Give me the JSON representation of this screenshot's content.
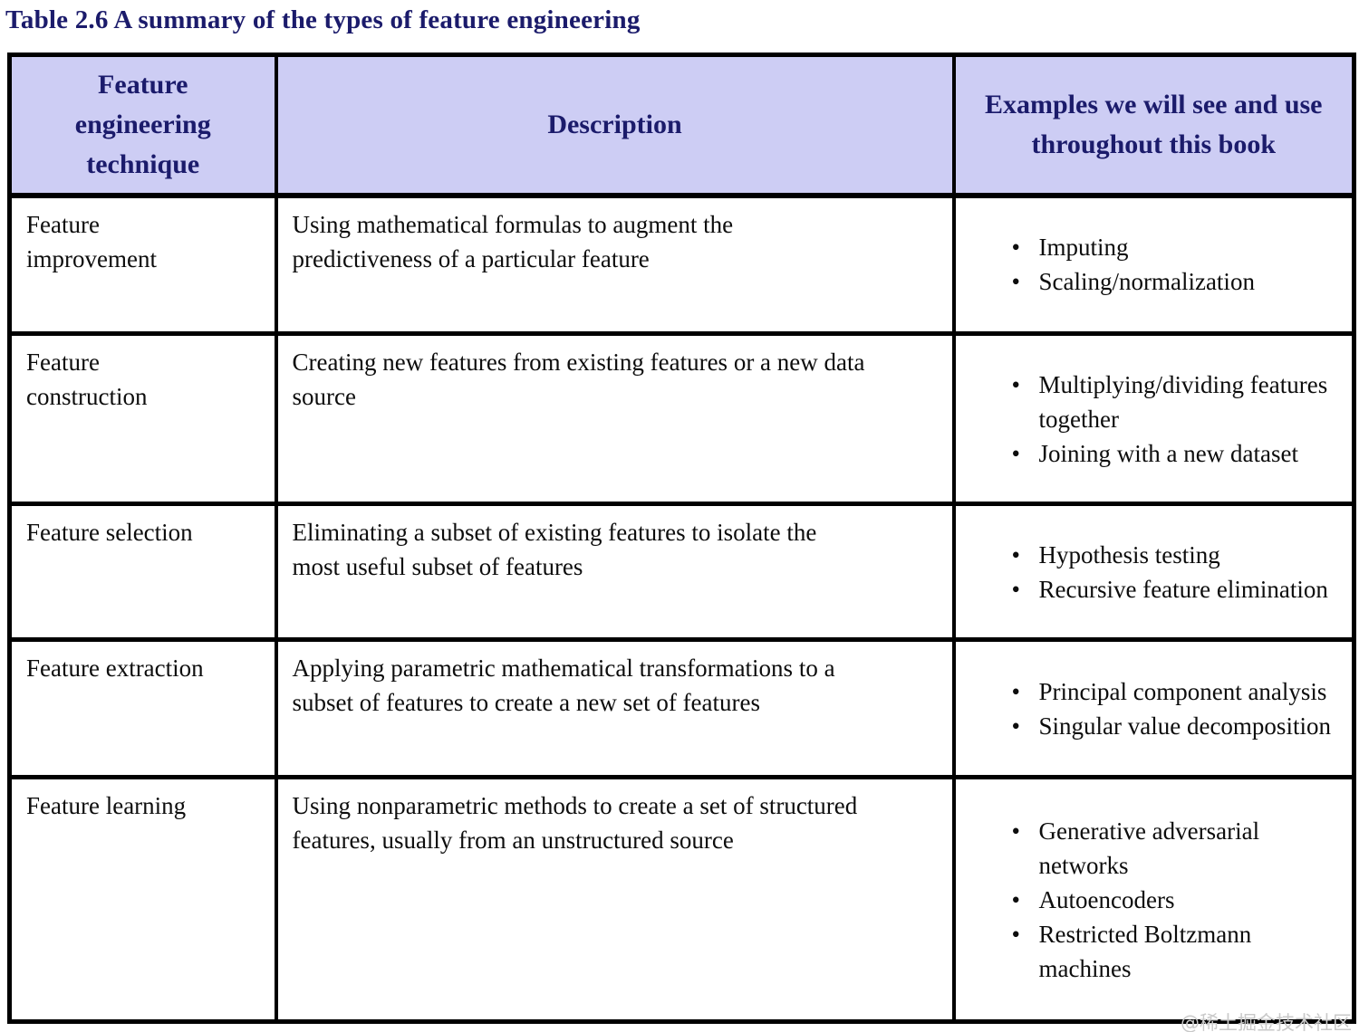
{
  "page": {
    "title": "Table 2.6 A summary of the types of feature engineering",
    "watermark": "@稀土掘金技术社区"
  },
  "colors": {
    "header_background": "#cdcdf4",
    "header_text": "#1b1b6b",
    "title_text": "#1b1b6b",
    "body_text": "#0d0d0d",
    "border": "#000000",
    "watermark_text": "#c9c9c9"
  },
  "table": {
    "columns": [
      "Feature engineering technique",
      "Description",
      "Examples we will see and use throughout this book"
    ],
    "rows": [
      {
        "technique": "Feature improvement",
        "description": "Using mathematical formulas to augment the predictiveness of a particular feature",
        "examples": [
          "Imputing",
          "Scaling/normalization"
        ]
      },
      {
        "technique": "Feature construction",
        "description": "Creating new features from existing features or a new data source",
        "examples": [
          "Multiplying/dividing features together",
          "Joining with a new dataset"
        ]
      },
      {
        "technique": "Feature selection",
        "description": "Eliminating a subset of existing features to isolate the most useful subset of features",
        "examples": [
          "Hypothesis testing",
          "Recursive feature elimination"
        ]
      },
      {
        "technique": "Feature extraction",
        "description": "Applying parametric mathematical transformations to a subset of features to create a new set of features",
        "examples": [
          "Principal component analysis",
          "Singular value decomposition"
        ]
      },
      {
        "technique": "Feature learning",
        "description": "Using nonparametric methods to create a set of structured features, usually from an unstructured source",
        "examples": [
          "Generative adversarial networks",
          "Autoencoders",
          "Restricted Boltzmann machines"
        ]
      }
    ]
  }
}
